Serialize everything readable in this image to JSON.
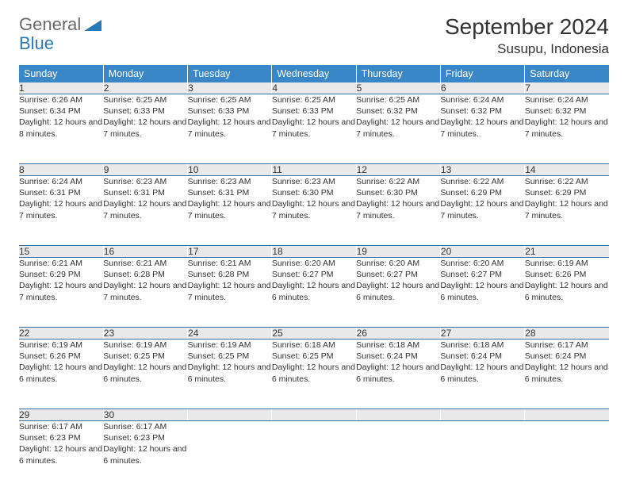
{
  "logo": {
    "general": "General",
    "blue": "Blue"
  },
  "title": "September 2024",
  "location": "Susupu, Indonesia",
  "colors": {
    "header_bg": "#3a87c8",
    "header_text": "#ffffff",
    "daynum_bg": "#e9e9e9",
    "row_divider": "#3a6fa8",
    "brand_blue": "#2a7ab8",
    "brand_gray": "#6a6a6a"
  },
  "weekdays": [
    "Sunday",
    "Monday",
    "Tuesday",
    "Wednesday",
    "Thursday",
    "Friday",
    "Saturday"
  ],
  "weeks": [
    [
      {
        "n": "1",
        "sr": "6:26 AM",
        "ss": "6:34 PM",
        "dl": "12 hours and 8 minutes."
      },
      {
        "n": "2",
        "sr": "6:25 AM",
        "ss": "6:33 PM",
        "dl": "12 hours and 7 minutes."
      },
      {
        "n": "3",
        "sr": "6:25 AM",
        "ss": "6:33 PM",
        "dl": "12 hours and 7 minutes."
      },
      {
        "n": "4",
        "sr": "6:25 AM",
        "ss": "6:33 PM",
        "dl": "12 hours and 7 minutes."
      },
      {
        "n": "5",
        "sr": "6:25 AM",
        "ss": "6:32 PM",
        "dl": "12 hours and 7 minutes."
      },
      {
        "n": "6",
        "sr": "6:24 AM",
        "ss": "6:32 PM",
        "dl": "12 hours and 7 minutes."
      },
      {
        "n": "7",
        "sr": "6:24 AM",
        "ss": "6:32 PM",
        "dl": "12 hours and 7 minutes."
      }
    ],
    [
      {
        "n": "8",
        "sr": "6:24 AM",
        "ss": "6:31 PM",
        "dl": "12 hours and 7 minutes."
      },
      {
        "n": "9",
        "sr": "6:23 AM",
        "ss": "6:31 PM",
        "dl": "12 hours and 7 minutes."
      },
      {
        "n": "10",
        "sr": "6:23 AM",
        "ss": "6:31 PM",
        "dl": "12 hours and 7 minutes."
      },
      {
        "n": "11",
        "sr": "6:23 AM",
        "ss": "6:30 PM",
        "dl": "12 hours and 7 minutes."
      },
      {
        "n": "12",
        "sr": "6:22 AM",
        "ss": "6:30 PM",
        "dl": "12 hours and 7 minutes."
      },
      {
        "n": "13",
        "sr": "6:22 AM",
        "ss": "6:29 PM",
        "dl": "12 hours and 7 minutes."
      },
      {
        "n": "14",
        "sr": "6:22 AM",
        "ss": "6:29 PM",
        "dl": "12 hours and 7 minutes."
      }
    ],
    [
      {
        "n": "15",
        "sr": "6:21 AM",
        "ss": "6:29 PM",
        "dl": "12 hours and 7 minutes."
      },
      {
        "n": "16",
        "sr": "6:21 AM",
        "ss": "6:28 PM",
        "dl": "12 hours and 7 minutes."
      },
      {
        "n": "17",
        "sr": "6:21 AM",
        "ss": "6:28 PM",
        "dl": "12 hours and 7 minutes."
      },
      {
        "n": "18",
        "sr": "6:20 AM",
        "ss": "6:27 PM",
        "dl": "12 hours and 6 minutes."
      },
      {
        "n": "19",
        "sr": "6:20 AM",
        "ss": "6:27 PM",
        "dl": "12 hours and 6 minutes."
      },
      {
        "n": "20",
        "sr": "6:20 AM",
        "ss": "6:27 PM",
        "dl": "12 hours and 6 minutes."
      },
      {
        "n": "21",
        "sr": "6:19 AM",
        "ss": "6:26 PM",
        "dl": "12 hours and 6 minutes."
      }
    ],
    [
      {
        "n": "22",
        "sr": "6:19 AM",
        "ss": "6:26 PM",
        "dl": "12 hours and 6 minutes."
      },
      {
        "n": "23",
        "sr": "6:19 AM",
        "ss": "6:25 PM",
        "dl": "12 hours and 6 minutes."
      },
      {
        "n": "24",
        "sr": "6:19 AM",
        "ss": "6:25 PM",
        "dl": "12 hours and 6 minutes."
      },
      {
        "n": "25",
        "sr": "6:18 AM",
        "ss": "6:25 PM",
        "dl": "12 hours and 6 minutes."
      },
      {
        "n": "26",
        "sr": "6:18 AM",
        "ss": "6:24 PM",
        "dl": "12 hours and 6 minutes."
      },
      {
        "n": "27",
        "sr": "6:18 AM",
        "ss": "6:24 PM",
        "dl": "12 hours and 6 minutes."
      },
      {
        "n": "28",
        "sr": "6:17 AM",
        "ss": "6:24 PM",
        "dl": "12 hours and 6 minutes."
      }
    ],
    [
      {
        "n": "29",
        "sr": "6:17 AM",
        "ss": "6:23 PM",
        "dl": "12 hours and 6 minutes."
      },
      {
        "n": "30",
        "sr": "6:17 AM",
        "ss": "6:23 PM",
        "dl": "12 hours and 6 minutes."
      },
      null,
      null,
      null,
      null,
      null
    ]
  ],
  "labels": {
    "sunrise": "Sunrise:",
    "sunset": "Sunset:",
    "daylight": "Daylight:"
  }
}
